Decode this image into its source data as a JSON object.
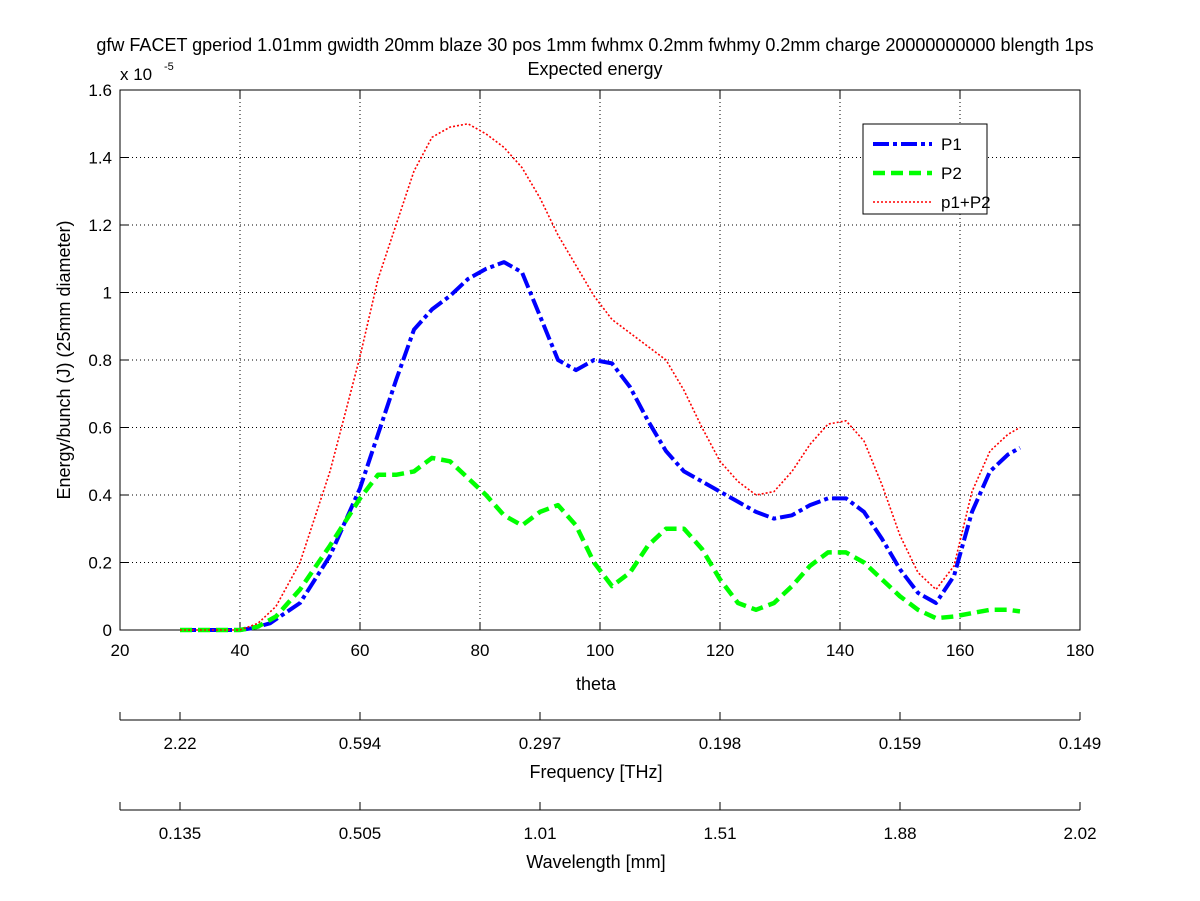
{
  "chart_data": {
    "type": "line",
    "title": "gfw FACET gperiod 1.01mm gwidth 20mm blaze 30 pos 1mm fwhmx 0.2mm fwhmy 0.2mm charge 20000000000 blength 1ps",
    "subtitle": "Expected energy",
    "xlabel": "theta",
    "ylabel": "Energy/bunch (J) (25mm diameter)",
    "y_exponent_label": "x 10",
    "y_exponent_power": "-5",
    "xlim": [
      20,
      180
    ],
    "ylim": [
      0,
      1.6
    ],
    "x_ticks": [
      "20",
      "40",
      "60",
      "80",
      "100",
      "120",
      "140",
      "160",
      "180"
    ],
    "y_ticks": [
      "0",
      "0.2",
      "0.4",
      "0.6",
      "0.8",
      "1",
      "1.2",
      "1.4",
      "1.6"
    ],
    "grid": true,
    "legend_position": "top-right",
    "series": [
      {
        "name": "P1",
        "color": "#0000ff",
        "style": "dash-dot",
        "x": [
          30,
          40,
          42,
          45,
          50,
          55,
          60,
          63,
          66,
          69,
          72,
          75,
          78,
          81,
          84,
          87,
          90,
          93,
          96,
          99,
          102,
          105,
          108,
          111,
          114,
          117,
          120,
          123,
          126,
          129,
          132,
          135,
          138,
          141,
          144,
          147,
          150,
          153,
          156,
          159,
          162,
          165,
          168,
          170
        ],
        "y": [
          0,
          0,
          0.005,
          0.02,
          0.08,
          0.22,
          0.42,
          0.58,
          0.74,
          0.89,
          0.95,
          0.99,
          1.04,
          1.07,
          1.09,
          1.06,
          0.93,
          0.8,
          0.77,
          0.8,
          0.79,
          0.72,
          0.62,
          0.53,
          0.47,
          0.44,
          0.41,
          0.38,
          0.35,
          0.33,
          0.34,
          0.37,
          0.39,
          0.39,
          0.35,
          0.27,
          0.18,
          0.11,
          0.08,
          0.16,
          0.35,
          0.47,
          0.52,
          0.54
        ]
      },
      {
        "name": "P2",
        "color": "#00ff00",
        "style": "dashed",
        "x": [
          30,
          40,
          43,
          46,
          50,
          55,
          60,
          63,
          66,
          69,
          72,
          75,
          78,
          81,
          84,
          87,
          90,
          93,
          96,
          99,
          102,
          105,
          108,
          111,
          114,
          117,
          120,
          123,
          126,
          129,
          132,
          135,
          138,
          141,
          144,
          147,
          150,
          153,
          156,
          159,
          162,
          165,
          168,
          170
        ],
        "y": [
          0,
          0,
          0.01,
          0.04,
          0.12,
          0.25,
          0.39,
          0.46,
          0.46,
          0.47,
          0.51,
          0.5,
          0.45,
          0.4,
          0.34,
          0.31,
          0.35,
          0.37,
          0.31,
          0.2,
          0.13,
          0.17,
          0.25,
          0.3,
          0.3,
          0.24,
          0.15,
          0.08,
          0.06,
          0.08,
          0.13,
          0.19,
          0.23,
          0.23,
          0.2,
          0.15,
          0.1,
          0.06,
          0.035,
          0.04,
          0.05,
          0.06,
          0.06,
          0.055
        ]
      },
      {
        "name": "p1+P2",
        "color": "#ff0000",
        "style": "dotted",
        "x": [
          30,
          40,
          43,
          46,
          50,
          55,
          60,
          63,
          66,
          69,
          72,
          75,
          78,
          81,
          84,
          87,
          90,
          93,
          96,
          99,
          102,
          105,
          108,
          111,
          114,
          117,
          120,
          123,
          126,
          129,
          132,
          135,
          138,
          141,
          144,
          147,
          150,
          153,
          156,
          159,
          162,
          165,
          168,
          170
        ],
        "y": [
          0,
          0,
          0.02,
          0.07,
          0.2,
          0.47,
          0.81,
          1.04,
          1.2,
          1.36,
          1.46,
          1.49,
          1.5,
          1.47,
          1.43,
          1.37,
          1.28,
          1.17,
          1.08,
          0.99,
          0.92,
          0.88,
          0.84,
          0.8,
          0.71,
          0.6,
          0.5,
          0.44,
          0.4,
          0.41,
          0.47,
          0.55,
          0.61,
          0.62,
          0.56,
          0.43,
          0.28,
          0.17,
          0.12,
          0.19,
          0.41,
          0.53,
          0.58,
          0.6
        ]
      }
    ],
    "secondary_axes": [
      {
        "label": "Frequency [THz]",
        "tick_x": [
          30,
          50,
          70,
          90,
          110,
          130,
          150,
          170
        ],
        "tick_labels": [
          "",
          "2.22",
          "0.594",
          "0.297",
          "0.198",
          "0.159",
          "0.149",
          ""
        ],
        "label_x": [
          30,
          60,
          90,
          120,
          150,
          180
        ],
        "labels": [
          "2.22",
          "0.594",
          "0.297",
          "0.198",
          "0.159",
          "0.149"
        ]
      },
      {
        "label": "Wavelength [mm]",
        "label_x": [
          30,
          60,
          90,
          120,
          150,
          180
        ],
        "labels": [
          "0.135",
          "0.505",
          "1.01",
          "1.51",
          "1.88",
          "2.02"
        ]
      }
    ]
  }
}
